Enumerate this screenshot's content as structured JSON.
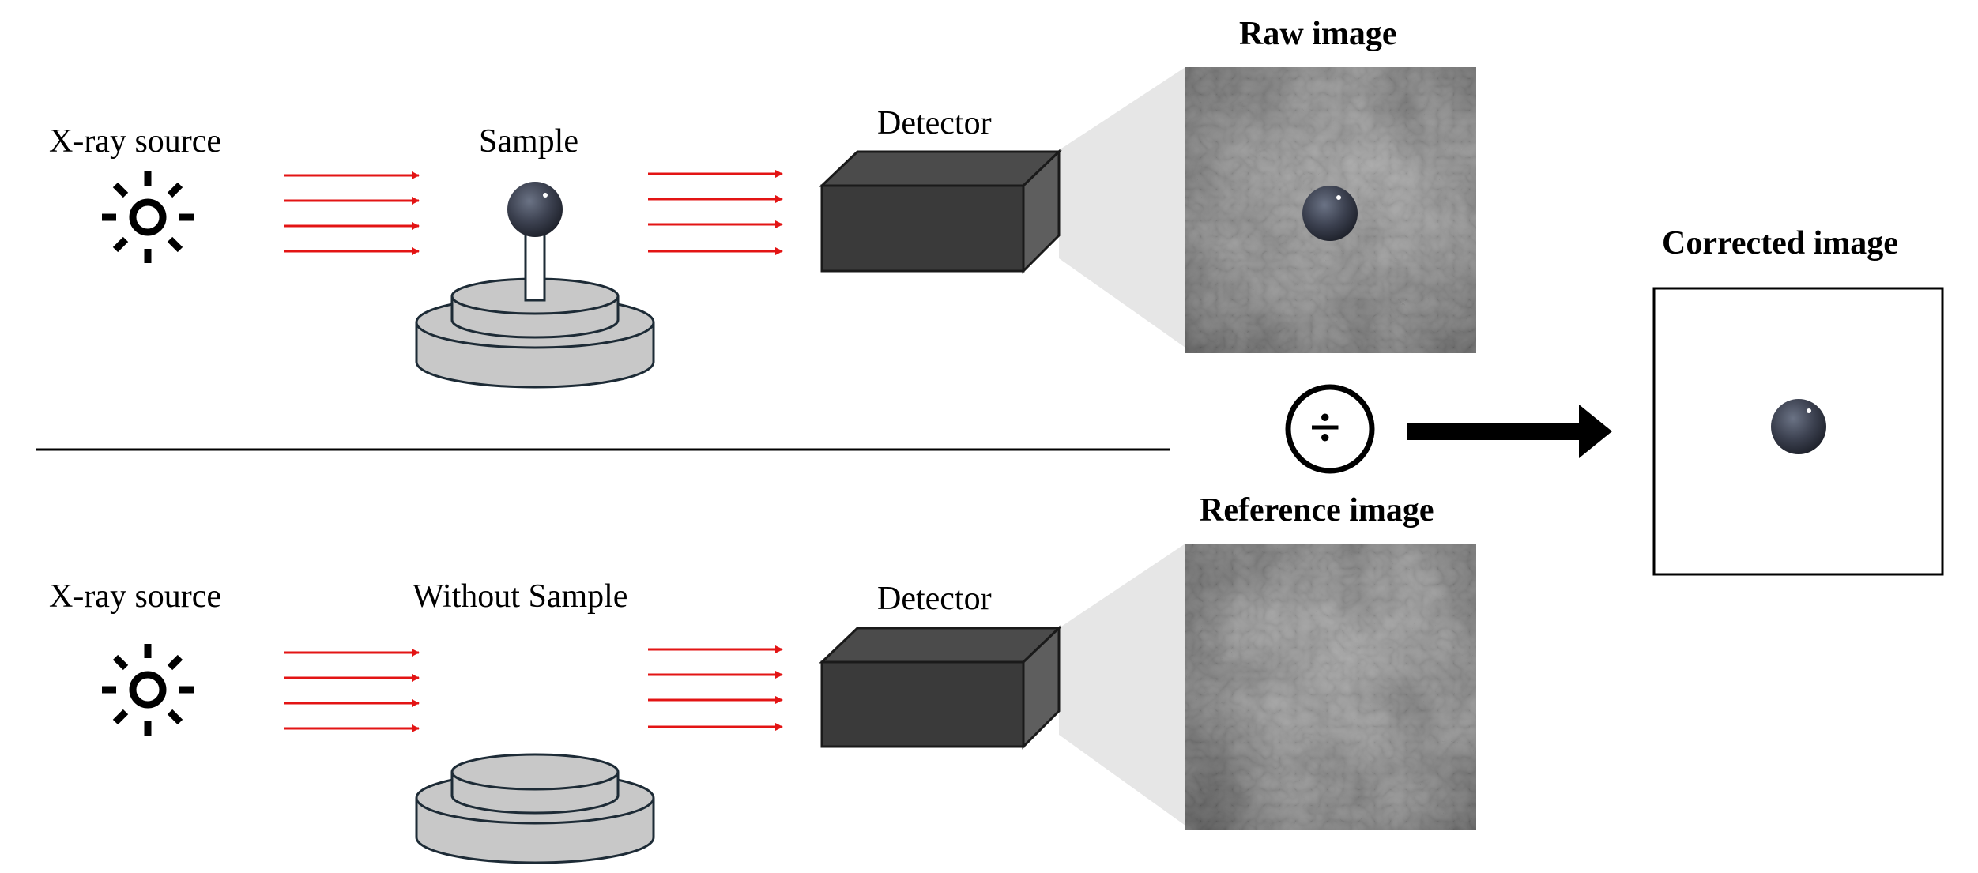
{
  "top_row": {
    "source_label": "X-ray source",
    "sample_label": "Sample",
    "detector_label": "Detector",
    "image_title": "Raw image"
  },
  "bottom_row": {
    "source_label": "X-ray source",
    "sample_label": "Without Sample",
    "detector_label": "Detector",
    "image_title": "Reference image"
  },
  "result": {
    "operator": "÷",
    "image_title": "Corrected image"
  },
  "colors": {
    "beam": "#e31414",
    "detector_front": "#3a3a3a",
    "detector_top": "#4b4b4b",
    "stage": "#c8c8c8",
    "stage_outline": "#1d2b36",
    "projection": "#e6e6e6",
    "sphere": "#3c4150"
  }
}
